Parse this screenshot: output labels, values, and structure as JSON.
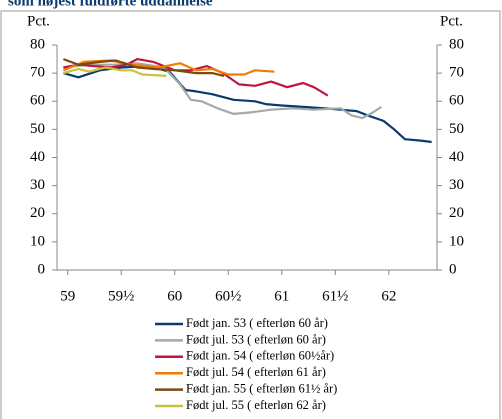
{
  "chart_data": {
    "type": "line",
    "title": "som højest fuldførte uddannelse",
    "y_label": "Pct.",
    "y2_label": "Pct.",
    "xlim": [
      58.9,
      62.45
    ],
    "xticks": [
      59,
      {
        "value": 59.5,
        "label": "59½"
      },
      60,
      {
        "value": 60.5,
        "label": "60½"
      },
      61,
      {
        "value": 61.5,
        "label": "61½"
      },
      62
    ],
    "ylim": [
      0,
      80
    ],
    "yticks": [
      0,
      10,
      20,
      30,
      40,
      50,
      60,
      70,
      80
    ],
    "y2lim": [
      0,
      80
    ],
    "y2ticks": [
      0,
      10,
      20,
      30,
      40,
      50,
      60,
      70,
      80
    ],
    "legend": "bottom",
    "series": [
      {
        "name": "Født jan. 53 ( efterløn 60 år)",
        "color": "#0b3a6e",
        "x": [
          58.96,
          59.1,
          59.3,
          59.5,
          59.75,
          59.95,
          60.1,
          60.2,
          60.35,
          60.55,
          60.75,
          60.85,
          61.0,
          61.2,
          61.4,
          61.55,
          61.7,
          61.8,
          61.95,
          62.05,
          62.15,
          62.3,
          62.4
        ],
        "values": [
          70,
          68.5,
          71,
          72,
          72.5,
          70.5,
          64,
          63.5,
          62.5,
          60.5,
          60,
          59,
          58.5,
          58,
          57.5,
          57,
          56.5,
          55,
          53,
          50,
          46.5,
          46,
          45.5
        ]
      },
      {
        "name": "Født jul. 53 ( efterløn 60 år)",
        "color": "#a3aaa9",
        "x": [
          58.96,
          59.2,
          59.45,
          59.65,
          59.9,
          60.05,
          60.15,
          60.25,
          60.4,
          60.55,
          60.7,
          60.9,
          61.1,
          61.3,
          61.55,
          61.65,
          61.75,
          61.85,
          61.93
        ],
        "values": [
          72,
          73,
          73,
          73.5,
          72,
          66,
          60.5,
          60,
          57.5,
          55.5,
          56,
          57,
          57.5,
          57,
          57.5,
          55,
          54,
          56,
          58
        ]
      },
      {
        "name": "Født jan. 54 ( efterløn 60½år)",
        "color": "#c0163e",
        "x": [
          58.96,
          59.1,
          59.25,
          59.4,
          59.55,
          59.65,
          59.8,
          60.0,
          60.15,
          60.3,
          60.45,
          60.6,
          60.75,
          60.9,
          61.05,
          61.2,
          61.3,
          61.43
        ],
        "values": [
          72,
          73,
          72.5,
          72,
          73,
          75,
          74,
          71,
          71,
          72.5,
          70,
          66,
          65.5,
          67,
          65,
          66.5,
          65,
          62
        ]
      },
      {
        "name": "Født jul. 54 ( efterløn 61 år)",
        "color": "#ef7d00",
        "x": [
          58.96,
          59.15,
          59.4,
          59.6,
          59.85,
          60.05,
          60.2,
          60.35,
          60.5,
          60.65,
          60.75,
          60.93
        ],
        "values": [
          71,
          74,
          74.5,
          73,
          72,
          73.5,
          71,
          71.5,
          69.5,
          69.5,
          71,
          70.5
        ]
      },
      {
        "name": "Født jan. 55 ( efterløn 61½ år)",
        "color": "#7b4a12",
        "x": [
          58.96,
          59.1,
          59.3,
          59.45,
          59.65,
          59.8,
          60.0,
          60.2,
          60.35,
          60.46
        ],
        "values": [
          75,
          73,
          74,
          74.5,
          72,
          71.5,
          71,
          70,
          70,
          69
        ]
      },
      {
        "name": "Født jul. 55 ( efterløn 62 år)",
        "color": "#c9c13f",
        "x": [
          58.96,
          59.1,
          59.2,
          59.35,
          59.5,
          59.6,
          59.7,
          59.92
        ],
        "values": [
          70,
          71.5,
          70.5,
          72,
          71,
          71,
          69.5,
          69
        ]
      }
    ]
  }
}
